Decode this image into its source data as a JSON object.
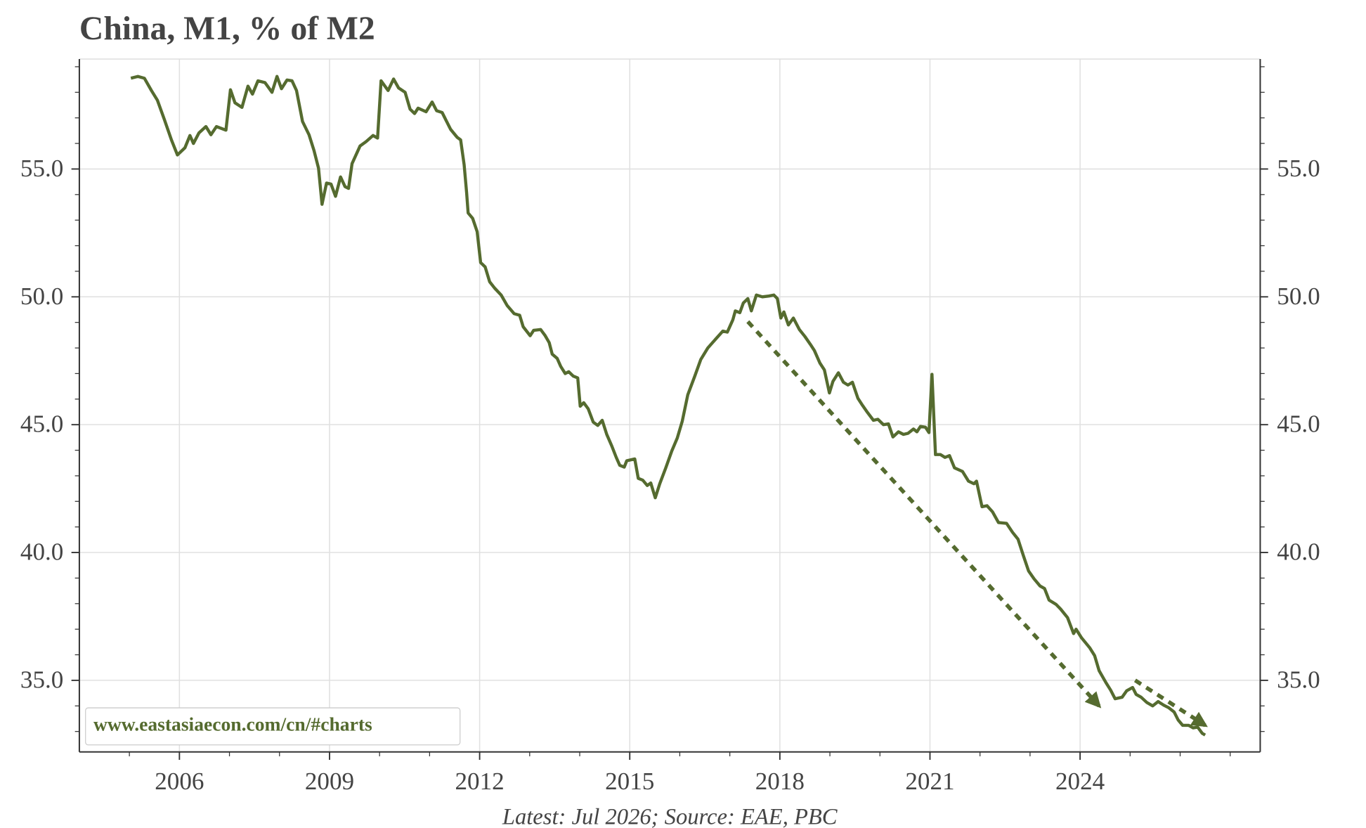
{
  "chart_data": {
    "type": "line",
    "title": "China, M1, % of M2",
    "source": "Latest: Jul 2026; Source: EAE, PBC",
    "watermark": "www.eastasiaecon.com/cn/#charts",
    "xlim": [
      2004,
      2027.6
    ],
    "ylim": [
      32.2,
      59.3
    ],
    "xticks": [
      2006,
      2009,
      2012,
      2015,
      2018,
      2021,
      2024
    ],
    "minor_xticks": [
      2005,
      2007,
      2008,
      2010,
      2011,
      2013,
      2014,
      2016,
      2017,
      2019,
      2020,
      2022,
      2023,
      2025,
      2026,
      2027
    ],
    "yticks": [
      {
        "value": 35,
        "label": "35.0"
      },
      {
        "value": 40,
        "label": "40.0"
      },
      {
        "value": 45,
        "label": "45.0"
      },
      {
        "value": 50,
        "label": "50.0"
      },
      {
        "value": 55,
        "label": "55.0"
      }
    ],
    "minor_yticks": [
      33,
      34,
      36,
      37,
      38,
      39,
      41,
      42,
      43,
      44,
      46,
      47,
      48,
      49,
      51,
      52,
      53,
      54,
      56,
      57,
      58,
      59
    ],
    "grid": true,
    "right_axis_mirror": true,
    "series": [
      {
        "color": "#556b2f",
        "x": [
          2005.03,
          2005.17,
          2005.3,
          2005.44,
          2005.56,
          2005.7,
          2005.84,
          2005.96,
          2006.11,
          2006.21,
          2006.28,
          2006.39,
          2006.53,
          2006.63,
          2006.74,
          2006.93,
          2007.02,
          2007.11,
          2007.25,
          2007.37,
          2007.46,
          2007.57,
          2007.71,
          2007.85,
          2007.95,
          2008.04,
          2008.15,
          2008.25,
          2008.34,
          2008.46,
          2008.59,
          2008.69,
          2008.78,
          2008.85,
          2008.94,
          2009.03,
          2009.12,
          2009.22,
          2009.31,
          2009.38,
          2009.45,
          2009.61,
          2009.73,
          2009.87,
          2009.96,
          2010.03,
          2010.17,
          2010.28,
          2010.38,
          2010.51,
          2010.61,
          2010.7,
          2010.77,
          2010.93,
          2011.05,
          2011.14,
          2011.25,
          2011.33,
          2011.42,
          2011.55,
          2011.62,
          2011.69,
          2011.74,
          2011.77,
          2011.86,
          2011.95,
          2012.02,
          2012.11,
          2012.2,
          2012.3,
          2012.43,
          2012.55,
          2012.69,
          2012.8,
          2012.87,
          2013.01,
          2013.08,
          2013.22,
          2013.31,
          2013.39,
          2013.45,
          2013.55,
          2013.62,
          2013.71,
          2013.78,
          2013.87,
          2013.96,
          2014.01,
          2014.08,
          2014.17,
          2014.27,
          2014.36,
          2014.45,
          2014.54,
          2014.64,
          2014.73,
          2014.8,
          2014.89,
          2014.94,
          2015.1,
          2015.17,
          2015.26,
          2015.35,
          2015.42,
          2015.51,
          2015.6,
          2015.72,
          2015.84,
          2015.95,
          2016.05,
          2016.16,
          2016.3,
          2016.42,
          2016.56,
          2016.7,
          2016.86,
          2016.95,
          2017.06,
          2017.11,
          2017.2,
          2017.27,
          2017.36,
          2017.43,
          2017.53,
          2017.65,
          2017.78,
          2017.88,
          2017.95,
          2018.02,
          2018.08,
          2018.17,
          2018.27,
          2018.39,
          2018.5,
          2018.61,
          2018.69,
          2018.8,
          2018.89,
          2018.99,
          2019.06,
          2019.17,
          2019.27,
          2019.36,
          2019.45,
          2019.56,
          2019.64,
          2019.75,
          2019.87,
          2019.96,
          2020.07,
          2020.17,
          2020.26,
          2020.37,
          2020.47,
          2020.56,
          2020.67,
          2020.74,
          2020.81,
          2020.91,
          2020.98,
          2021.04,
          2021.11,
          2021.21,
          2021.3,
          2021.39,
          2021.49,
          2021.65,
          2021.77,
          2021.88,
          2021.93,
          2022.04,
          2022.14,
          2022.25,
          2022.37,
          2022.53,
          2022.65,
          2022.76,
          2022.87,
          2022.97,
          2023.08,
          2023.2,
          2023.29,
          2023.38,
          2023.52,
          2023.61,
          2023.75,
          2023.87,
          2023.92,
          2024.03,
          2024.19,
          2024.29,
          2024.38,
          2024.52,
          2024.61,
          2024.7,
          2024.84,
          2024.93,
          2025.05,
          2025.12,
          2025.22,
          2025.33,
          2025.45,
          2025.56,
          2025.67,
          2025.77,
          2025.88,
          2025.96,
          2026.05,
          2026.17,
          2026.26,
          2026.35,
          2026.44,
          2026.5
        ],
        "values": [
          58.55,
          58.62,
          58.55,
          58.07,
          57.69,
          56.93,
          56.14,
          55.55,
          55.83,
          56.31,
          56.0,
          56.41,
          56.66,
          56.34,
          56.66,
          56.52,
          58.1,
          57.59,
          57.41,
          58.24,
          57.93,
          58.45,
          58.38,
          58.0,
          58.62,
          58.14,
          58.48,
          58.45,
          58.07,
          56.86,
          56.34,
          55.72,
          55.03,
          53.62,
          54.45,
          54.41,
          53.93,
          54.69,
          54.31,
          54.24,
          55.21,
          55.9,
          56.07,
          56.31,
          56.21,
          58.45,
          58.07,
          58.52,
          58.17,
          58.0,
          57.34,
          57.17,
          57.38,
          57.24,
          57.62,
          57.28,
          57.21,
          56.9,
          56.55,
          56.24,
          56.14,
          55.17,
          54.07,
          53.28,
          53.07,
          52.55,
          51.34,
          51.17,
          50.59,
          50.34,
          50.07,
          49.66,
          49.34,
          49.28,
          48.83,
          48.48,
          48.69,
          48.72,
          48.48,
          48.21,
          47.76,
          47.59,
          47.28,
          47.0,
          47.07,
          46.9,
          46.83,
          45.72,
          45.86,
          45.62,
          45.1,
          44.97,
          45.17,
          44.62,
          44.17,
          43.72,
          43.41,
          43.34,
          43.59,
          43.66,
          42.9,
          42.83,
          42.62,
          42.72,
          42.14,
          42.69,
          43.31,
          43.97,
          44.48,
          45.14,
          46.17,
          46.9,
          47.55,
          48.0,
          48.31,
          48.66,
          48.62,
          49.1,
          49.45,
          49.38,
          49.76,
          49.93,
          49.45,
          50.07,
          50.0,
          50.03,
          50.07,
          49.93,
          49.17,
          49.41,
          48.9,
          49.17,
          48.72,
          48.45,
          48.14,
          47.9,
          47.41,
          47.14,
          46.24,
          46.69,
          47.03,
          46.66,
          46.55,
          46.66,
          46.03,
          45.79,
          45.48,
          45.17,
          45.21,
          45.0,
          45.03,
          44.52,
          44.72,
          44.62,
          44.66,
          44.83,
          44.72,
          44.93,
          44.9,
          44.69,
          46.97,
          43.83,
          43.83,
          43.72,
          43.79,
          43.31,
          43.17,
          42.79,
          42.69,
          42.79,
          41.79,
          41.83,
          41.59,
          41.17,
          41.14,
          40.79,
          40.52,
          39.86,
          39.28,
          38.97,
          38.69,
          38.59,
          38.14,
          37.97,
          37.79,
          37.45,
          36.83,
          37.0,
          36.66,
          36.28,
          35.97,
          35.38,
          34.9,
          34.62,
          34.28,
          34.34,
          34.59,
          34.72,
          34.45,
          34.34,
          34.14,
          34.0,
          34.17,
          34.03,
          33.93,
          33.76,
          33.45,
          33.24,
          33.24,
          33.14,
          33.17,
          32.93,
          32.86
        ]
      }
    ],
    "arrows": [
      {
        "x": [
          2017.36,
          2024.38
        ],
        "y": [
          49.03,
          34.0
        ]
      },
      {
        "x": [
          2025.1,
          2026.5
        ],
        "y": [
          35.0,
          33.24
        ]
      }
    ]
  }
}
